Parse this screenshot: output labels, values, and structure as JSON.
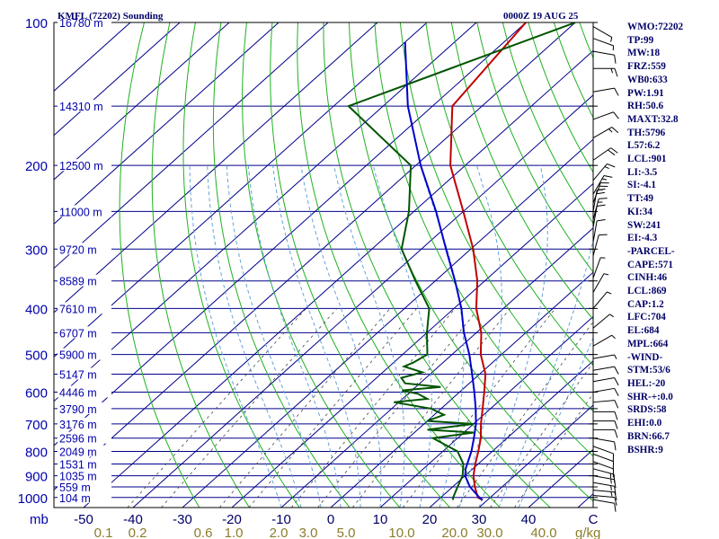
{
  "header": {
    "station": "KMFL (72202) Sounding",
    "time": "0000Z 19 AUG 25"
  },
  "colors": {
    "isobar": "#00008b",
    "isotherm": "#00008b",
    "dry_adiabat": "#1fb11f",
    "moist_adiabat": "#66a3d9",
    "mixing_ratio": "#444444",
    "temperature": "#c00000",
    "dewpoint": "#005500",
    "parcel": "#0000cc",
    "label_p": "#0000aa",
    "label_t": "#000066",
    "label_w": "#8b7d2a"
  },
  "chart_data": {
    "type": "line",
    "xlabel": "",
    "ylabel": "mb",
    "mixing_ratio_unit": "g/kg",
    "pressure_ticks": [
      "100",
      "200",
      "300",
      "400",
      "500",
      "600",
      "700",
      "800",
      "900",
      "1000"
    ],
    "pressure_values": [
      100,
      200,
      300,
      400,
      500,
      600,
      700,
      800,
      900,
      1000
    ],
    "temperature_ticks": [
      "-50",
      "-40",
      "-30",
      "-20",
      "-10",
      "0",
      "10",
      "20",
      "30",
      "40",
      "C"
    ],
    "temperature_values": [
      -50,
      -40,
      -30,
      -20,
      -10,
      0,
      10,
      20,
      30,
      40
    ],
    "mixing_ratio_ticks": [
      "0.1",
      "0.2",
      "0.6",
      "1.0",
      "2.0",
      "3.0",
      "5.0",
      "10.0",
      "20.0",
      "30.0",
      "40.0"
    ],
    "mixing_ratio_values": [
      0.1,
      0.2,
      0.6,
      1.0,
      2.0,
      3.0,
      5.0,
      10.0,
      20.0,
      30.0,
      40.0
    ],
    "height_labels": [
      {
        "p": 100,
        "label": "16780 m"
      },
      {
        "p": 150,
        "label": "14310 m"
      },
      {
        "p": 200,
        "label": "12500 m"
      },
      {
        "p": 250,
        "label": "11000 m"
      },
      {
        "p": 300,
        "label": "9720 m"
      },
      {
        "p": 350,
        "label": "8589 m"
      },
      {
        "p": 400,
        "label": "7610 m"
      },
      {
        "p": 450,
        "label": "6707 m"
      },
      {
        "p": 500,
        "label": "5900 m"
      },
      {
        "p": 550,
        "label": "5147 m"
      },
      {
        "p": 600,
        "label": "4446 m"
      },
      {
        "p": 650,
        "label": "3790 m"
      },
      {
        "p": 700,
        "label": "3176 m"
      },
      {
        "p": 750,
        "label": "2596 m"
      },
      {
        "p": 800,
        "label": "2049 m"
      },
      {
        "p": 850,
        "label": "1531 m"
      },
      {
        "p": 900,
        "label": "1035 m"
      },
      {
        "p": 950,
        "label": "559 m"
      },
      {
        "p": 1000,
        "label": "104 m"
      }
    ],
    "series": [
      {
        "name": "",
        "kind": "temperature",
        "points": [
          [
            1012,
            29.0
          ],
          [
            1000,
            27.5
          ],
          [
            950,
            24.5
          ],
          [
            900,
            21.7
          ],
          [
            850,
            19.4
          ],
          [
            800,
            17.2
          ],
          [
            750,
            14.7
          ],
          [
            700,
            11.5
          ],
          [
            650,
            8.4
          ],
          [
            600,
            5.0
          ],
          [
            550,
            1.2
          ],
          [
            500,
            -4.2
          ],
          [
            450,
            -9.0
          ],
          [
            400,
            -15.5
          ],
          [
            350,
            -21.5
          ],
          [
            300,
            -29.5
          ],
          [
            250,
            -40.0
          ],
          [
            200,
            -53.0
          ],
          [
            150,
            -66.0
          ],
          [
            100,
            -70.0
          ]
        ]
      },
      {
        "name": "",
        "kind": "dewpoint",
        "points": [
          [
            1012,
            23.0
          ],
          [
            1000,
            22.5
          ],
          [
            950,
            21.0
          ],
          [
            900,
            19.5
          ],
          [
            850,
            17.0
          ],
          [
            800,
            13.0
          ],
          [
            750,
            5.0
          ],
          [
            730,
            12.0
          ],
          [
            720,
            2.0
          ],
          [
            700,
            10.0
          ],
          [
            690,
            0.0
          ],
          [
            670,
            2.0
          ],
          [
            650,
            -2.0
          ],
          [
            630,
            -11.0
          ],
          [
            620,
            -5.0
          ],
          [
            605,
            -8.0
          ],
          [
            595,
            -12.0
          ],
          [
            585,
            -5.0
          ],
          [
            575,
            -13.0
          ],
          [
            560,
            -15.0
          ],
          [
            545,
            -12.0
          ],
          [
            530,
            -17.0
          ],
          [
            520,
            -16.0
          ],
          [
            500,
            -15.0
          ],
          [
            450,
            -20.0
          ],
          [
            400,
            -25.0
          ],
          [
            350,
            -34.0
          ],
          [
            300,
            -44.0
          ],
          [
            250,
            -51.0
          ],
          [
            200,
            -61.0
          ],
          [
            150,
            -87.0
          ],
          [
            100,
            -60.0
          ]
        ]
      },
      {
        "name": "",
        "kind": "parcel",
        "points": [
          [
            1012,
            29.0
          ],
          [
            1000,
            27.8
          ],
          [
            950,
            23.5
          ],
          [
            900,
            20.0
          ],
          [
            869,
            18.5
          ],
          [
            800,
            15.8
          ],
          [
            750,
            13.3
          ],
          [
            700,
            10.5
          ],
          [
            650,
            7.0
          ],
          [
            600,
            3.0
          ],
          [
            550,
            -1.5
          ],
          [
            500,
            -6.5
          ],
          [
            450,
            -12.5
          ],
          [
            400,
            -18.5
          ],
          [
            350,
            -26.0
          ],
          [
            300,
            -35.0
          ],
          [
            250,
            -45.5
          ],
          [
            200,
            -59.0
          ],
          [
            150,
            -75.0
          ],
          [
            110,
            -90.0
          ]
        ]
      }
    ],
    "winds": [
      {
        "p": 1010,
        "dir": 100,
        "spd": 10
      },
      {
        "p": 990,
        "dir": 95,
        "spd": 12
      },
      {
        "p": 965,
        "dir": 95,
        "spd": 15
      },
      {
        "p": 930,
        "dir": 100,
        "spd": 15
      },
      {
        "p": 900,
        "dir": 100,
        "spd": 15
      },
      {
        "p": 870,
        "dir": 105,
        "spd": 15
      },
      {
        "p": 840,
        "dir": 110,
        "spd": 12
      },
      {
        "p": 810,
        "dir": 110,
        "spd": 10
      },
      {
        "p": 780,
        "dir": 110,
        "spd": 10
      },
      {
        "p": 750,
        "dir": 100,
        "spd": 10
      },
      {
        "p": 720,
        "dir": 90,
        "spd": 10
      },
      {
        "p": 690,
        "dir": 90,
        "spd": 10
      },
      {
        "p": 660,
        "dir": 90,
        "spd": 10
      },
      {
        "p": 630,
        "dir": 85,
        "spd": 10
      },
      {
        "p": 600,
        "dir": 80,
        "spd": 10
      },
      {
        "p": 570,
        "dir": 80,
        "spd": 10
      },
      {
        "p": 540,
        "dir": 80,
        "spd": 10
      },
      {
        "p": 510,
        "dir": 80,
        "spd": 5
      },
      {
        "p": 480,
        "dir": 60,
        "spd": 5
      },
      {
        "p": 440,
        "dir": 50,
        "spd": 5
      },
      {
        "p": 400,
        "dir": 40,
        "spd": 5
      },
      {
        "p": 370,
        "dir": 30,
        "spd": 5
      },
      {
        "p": 345,
        "dir": 20,
        "spd": 5
      },
      {
        "p": 310,
        "dir": 15,
        "spd": 10
      },
      {
        "p": 290,
        "dir": 10,
        "spd": 10
      },
      {
        "p": 270,
        "dir": 10,
        "spd": 10
      },
      {
        "p": 260,
        "dir": 15,
        "spd": 15
      },
      {
        "p": 250,
        "dir": 10,
        "spd": 20
      },
      {
        "p": 240,
        "dir": 20,
        "spd": 25
      },
      {
        "p": 230,
        "dir": 30,
        "spd": 15
      },
      {
        "p": 215,
        "dir": 40,
        "spd": 15
      },
      {
        "p": 195,
        "dir": 55,
        "spd": 20
      },
      {
        "p": 175,
        "dir": 60,
        "spd": 15
      },
      {
        "p": 160,
        "dir": 70,
        "spd": 10
      },
      {
        "p": 140,
        "dir": 80,
        "spd": 10
      },
      {
        "p": 125,
        "dir": 90,
        "spd": 15
      },
      {
        "p": 115,
        "dir": 100,
        "spd": 10
      },
      {
        "p": 108,
        "dir": 110,
        "spd": 5
      },
      {
        "p": 102,
        "dir": 120,
        "spd": 5
      }
    ]
  },
  "indices": [
    "WMO:72202",
    "TP:99",
    "MW:18",
    "FRZ:559",
    "WB0:633",
    "PW:1.91",
    "RH:50.6",
    "MAXT:32.8",
    "TH:5796",
    "L57:6.2",
    "LCL:901",
    "LI:-3.5",
    "SI:-4.1",
    "TT:49",
    "KI:34",
    "SW:241",
    "EI:-4.3",
    "-PARCEL-",
    "CAPE:571",
    "CINH:46",
    "LCL:869",
    "CAP:1.2",
    "LFC:704",
    "EL:684",
    "MPL:664",
    "-WIND-",
    "STM:53/6",
    "HEL:-20",
    "SHR-+:0.0",
    "SRDS:58",
    "EHI:0.0",
    "BRN:66.7",
    "BSHR:9"
  ]
}
